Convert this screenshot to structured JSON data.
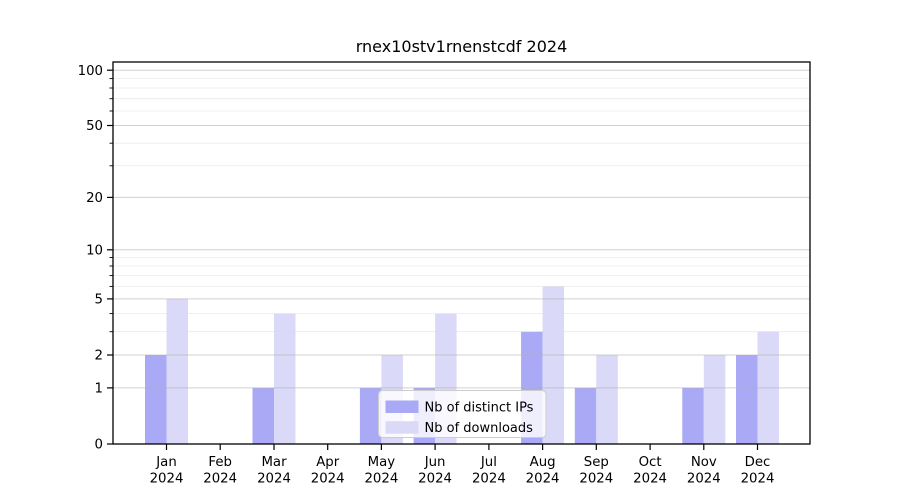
{
  "figure": {
    "background": "#ffffff"
  },
  "chart_data": {
    "type": "bar",
    "title": "rnex10stv1rnenstcdf 2024",
    "categories": [
      "Jan 2024",
      "Feb 2024",
      "Mar 2024",
      "Apr 2024",
      "May 2024",
      "Jun 2024",
      "Jul 2024",
      "Aug 2024",
      "Sep 2024",
      "Oct 2024",
      "Nov 2024",
      "Dec 2024"
    ],
    "series": [
      {
        "name": "Nb of distinct IPs",
        "color": "#a9a9f6",
        "values": [
          2,
          0,
          1,
          0,
          1,
          1,
          0,
          3,
          1,
          0,
          1,
          2
        ]
      },
      {
        "name": "Nb of downloads",
        "color": "#dadaf8",
        "values": [
          5,
          0,
          4,
          0,
          2,
          4,
          0,
          6,
          2,
          0,
          2,
          3
        ]
      }
    ],
    "xlabel": "",
    "ylabel": "",
    "yscale": "log1p",
    "ylim": [
      0,
      111
    ],
    "yticks": [
      0,
      1,
      2,
      5,
      10,
      20,
      50,
      100
    ],
    "yticks_minor": [
      3,
      4,
      6,
      7,
      8,
      9,
      30,
      40,
      60,
      70,
      80,
      90
    ],
    "grid": "on",
    "legend_position": "lower center"
  },
  "colors": {
    "axis": "#000000",
    "grid_major": "#b0b0b0",
    "grid_minor": "#d9d9d9",
    "legend_bg": "#ffffff",
    "legend_border": "#cccccc",
    "text": "#000000"
  }
}
